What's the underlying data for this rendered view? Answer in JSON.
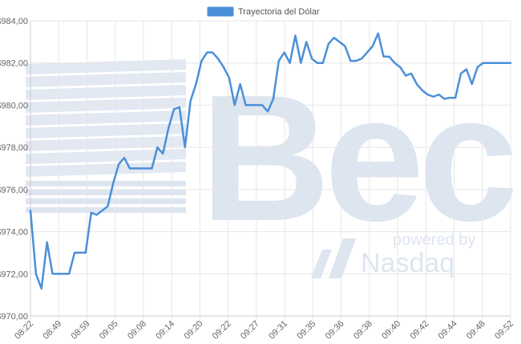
{
  "watermark": {
    "logo_text": "Bec",
    "powered_by": "powered by",
    "provider": "Nasdaq",
    "color": "#dde5f0"
  },
  "chart_data": {
    "type": "line",
    "title": "",
    "xlabel": "",
    "ylabel": "",
    "legend": {
      "label": "Trayectoria del Dólar",
      "position": "top-center"
    },
    "grid": true,
    "line_color": "#4a90d9",
    "ylim": [
      970,
      984
    ],
    "y_ticks": [
      970,
      972,
      974,
      976,
      978,
      980,
      982,
      984
    ],
    "y_tick_labels": [
      "$970,00",
      "$972,00",
      "$974,00",
      "$976,00",
      "$978,00",
      "$980,00",
      "$982,00",
      "$984,00"
    ],
    "x_tick_labels": [
      "08:22",
      "08:49",
      "08:59",
      "09:05",
      "09:08",
      "09:14",
      "09:20",
      "09:22",
      "09:27",
      "09:31",
      "09:35",
      "09:36",
      "09:38",
      "09:40",
      "09:42",
      "09:44",
      "09:48",
      "09:52"
    ],
    "series": [
      {
        "name": "Trayectoria del Dólar",
        "values": [
          975.0,
          972.0,
          971.3,
          973.5,
          972.0,
          972.0,
          972.0,
          972.0,
          973.0,
          973.0,
          973.0,
          974.9,
          974.8,
          975.0,
          975.2,
          976.3,
          977.2,
          977.5,
          977.0,
          977.0,
          977.0,
          977.0,
          977.0,
          978.0,
          977.7,
          978.9,
          979.8,
          979.9,
          978.0,
          980.2,
          981.0,
          982.1,
          982.5,
          982.5,
          982.2,
          981.8,
          981.3,
          980.0,
          981.0,
          980.0,
          980.0,
          980.0,
          980.0,
          979.7,
          980.3,
          982.1,
          982.5,
          982.0,
          983.3,
          982.0,
          983.0,
          982.2,
          982.0,
          982.0,
          982.9,
          983.2,
          983.0,
          982.8,
          982.1,
          982.1,
          982.2,
          982.5,
          982.8,
          983.4,
          982.3,
          982.3,
          982.0,
          981.8,
          981.4,
          981.5,
          981.0,
          980.7,
          980.5,
          980.4,
          980.5,
          980.3,
          980.35,
          980.35,
          981.5,
          981.7,
          981.0,
          981.8,
          982.0,
          982.0,
          982.0,
          982.0,
          982.0,
          982.0
        ]
      }
    ]
  }
}
